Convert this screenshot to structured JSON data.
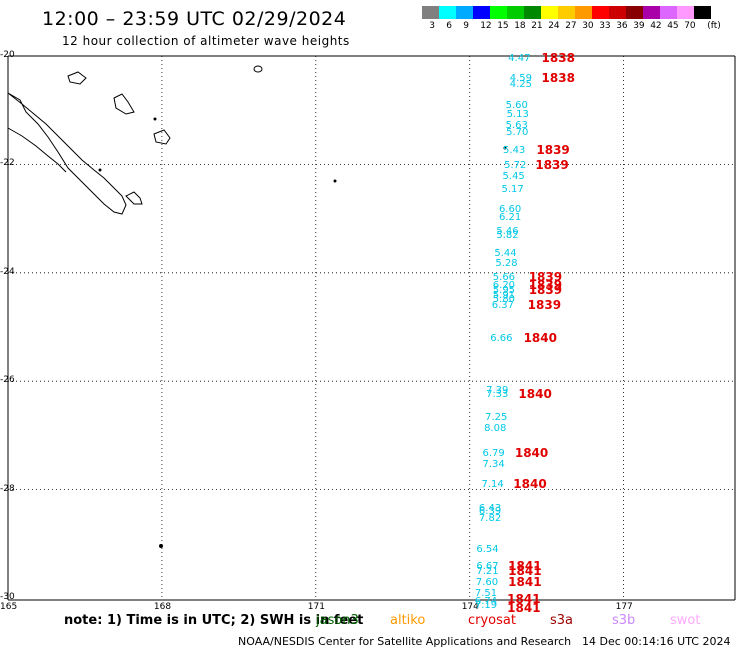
{
  "header": {
    "title": "12:00 – 23:59 UTC 02/29/2024",
    "subtitle": "12 hour collection of altimeter wave heights"
  },
  "colorbar": {
    "colors": [
      "#808080",
      "#00ffff",
      "#00aaff",
      "#0000ff",
      "#00ff00",
      "#00cc00",
      "#008800",
      "#ffff00",
      "#ffcc00",
      "#ff9900",
      "#ff0000",
      "#cc0000",
      "#880000",
      "#aa00aa",
      "#dd66ff",
      "#ff99ff",
      "#000000"
    ],
    "labels": [
      "3",
      "6",
      "9",
      "12",
      "15",
      "18",
      "21",
      "24",
      "27",
      "30",
      "33",
      "36",
      "39",
      "42",
      "45",
      "70",
      "(ft)"
    ]
  },
  "axes": {
    "lat_ticks": [
      "-20",
      "-22",
      "-24",
      "-26",
      "-28",
      "-30"
    ],
    "lon_ticks": [
      "165",
      "168",
      "171",
      "174",
      "177"
    ]
  },
  "observations": {
    "cyan": [
      {
        "v": "4.47",
        "lat": -20.05,
        "lon": 174.75
      },
      {
        "v": "4.59",
        "lat": -20.43,
        "lon": 174.78
      },
      {
        "v": "4.25",
        "lat": -20.53,
        "lon": 174.78
      },
      {
        "v": "5.60",
        "lat": -20.93,
        "lon": 174.7
      },
      {
        "v": "5.13",
        "lat": -21.08,
        "lon": 174.72
      },
      {
        "v": "5.63",
        "lat": -21.3,
        "lon": 174.7
      },
      {
        "v": "5.70",
        "lat": -21.42,
        "lon": 174.71
      },
      {
        "v": "5.43",
        "lat": -21.75,
        "lon": 174.65
      },
      {
        "v": "5.72",
        "lat": -22.03,
        "lon": 174.67
      },
      {
        "v": "5.45",
        "lat": -22.23,
        "lon": 174.64
      },
      {
        "v": "5.17",
        "lat": -22.48,
        "lon": 174.62
      },
      {
        "v": "6.60",
        "lat": -22.85,
        "lon": 174.57
      },
      {
        "v": "6.21",
        "lat": -22.98,
        "lon": 174.57
      },
      {
        "v": "5.46",
        "lat": -23.25,
        "lon": 174.52
      },
      {
        "v": "5.82",
        "lat": -23.33,
        "lon": 174.52
      },
      {
        "v": "5.44",
        "lat": -23.65,
        "lon": 174.48
      },
      {
        "v": "5.28",
        "lat": -23.83,
        "lon": 174.5
      },
      {
        "v": "5.66",
        "lat": -24.1,
        "lon": 174.45
      },
      {
        "v": "6.20",
        "lat": -24.25,
        "lon": 174.45
      },
      {
        "v": "5.95",
        "lat": -24.33,
        "lon": 174.45
      },
      {
        "v": "5.91",
        "lat": -24.43,
        "lon": 174.45
      },
      {
        "v": "5.80",
        "lat": -24.5,
        "lon": 174.45
      },
      {
        "v": "6.37",
        "lat": -24.62,
        "lon": 174.43
      },
      {
        "v": "6.66",
        "lat": -25.22,
        "lon": 174.4
      },
      {
        "v": "7.39",
        "lat": -26.18,
        "lon": 174.32
      },
      {
        "v": "7.33",
        "lat": -26.25,
        "lon": 174.32
      },
      {
        "v": "7.25",
        "lat": -26.68,
        "lon": 174.3
      },
      {
        "v": "8.08",
        "lat": -26.88,
        "lon": 174.28
      },
      {
        "v": "6.79",
        "lat": -27.35,
        "lon": 174.25
      },
      {
        "v": "7.34",
        "lat": -27.55,
        "lon": 174.25
      },
      {
        "v": "7.14",
        "lat": -27.92,
        "lon": 174.23
      },
      {
        "v": "6.43",
        "lat": -28.35,
        "lon": 174.18
      },
      {
        "v": "6.39",
        "lat": -28.42,
        "lon": 174.18
      },
      {
        "v": "7.82",
        "lat": -28.55,
        "lon": 174.18
      },
      {
        "v": "6.54",
        "lat": -29.12,
        "lon": 174.13
      },
      {
        "v": "6.67",
        "lat": -29.42,
        "lon": 174.13
      },
      {
        "v": "7.21",
        "lat": -29.52,
        "lon": 174.13
      },
      {
        "v": "7.60",
        "lat": -29.72,
        "lon": 174.12
      },
      {
        "v": "7.51",
        "lat": -29.92,
        "lon": 174.1
      },
      {
        "v": "6.74",
        "lat": -30.07,
        "lon": 174.1
      },
      {
        "v": "7.19",
        "lat": -30.15,
        "lon": 174.1
      }
    ],
    "red": [
      {
        "v": "1838",
        "lat": -20.05,
        "lon": 175.4
      },
      {
        "v": "1838",
        "lat": -20.43,
        "lon": 175.4
      },
      {
        "v": "1839",
        "lat": -21.75,
        "lon": 175.3
      },
      {
        "v": "1839",
        "lat": -22.03,
        "lon": 175.28
      },
      {
        "v": "1839",
        "lat": -24.1,
        "lon": 175.15
      },
      {
        "v": "1839",
        "lat": -24.25,
        "lon": 175.15
      },
      {
        "v": "1839",
        "lat": -24.33,
        "lon": 175.15
      },
      {
        "v": "1839",
        "lat": -24.62,
        "lon": 175.13
      },
      {
        "v": "1840",
        "lat": -25.22,
        "lon": 175.05
      },
      {
        "v": "1840",
        "lat": -26.25,
        "lon": 174.95
      },
      {
        "v": "1840",
        "lat": -27.35,
        "lon": 174.88
      },
      {
        "v": "1840",
        "lat": -27.92,
        "lon": 174.85
      },
      {
        "v": "1841",
        "lat": -29.42,
        "lon": 174.75
      },
      {
        "v": "1841",
        "lat": -29.52,
        "lon": 174.75
      },
      {
        "v": "1841",
        "lat": -29.72,
        "lon": 174.75
      },
      {
        "v": "1841",
        "lat": -30.03,
        "lon": 174.73
      },
      {
        "v": "1841",
        "lat": -30.2,
        "lon": 174.73
      }
    ]
  },
  "footer": {
    "note": "note: 1) Time is in UTC; 2) SWH is in feet",
    "satellites": [
      {
        "name": "jason3",
        "color": "#006600"
      },
      {
        "name": "altiko",
        "color": "#ff9900"
      },
      {
        "name": "cryosat",
        "color": "#e00000"
      },
      {
        "name": "s3a",
        "color": "#990000"
      },
      {
        "name": "s3b",
        "color": "#cc88ff"
      },
      {
        "name": "swot",
        "color": "#ffaaff"
      }
    ],
    "credit": "NOAA/NESDIS Center for Satellite Applications and Research",
    "timestamp": "14 Dec 00:14:16 UTC 2024"
  }
}
